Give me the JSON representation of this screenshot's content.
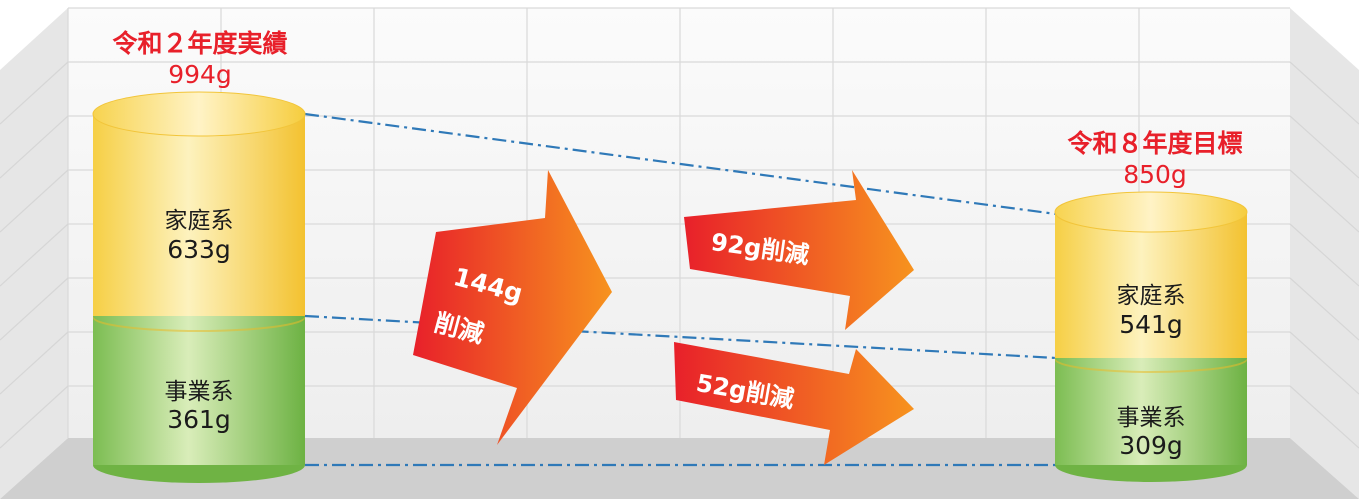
{
  "colors": {
    "household_light": "#fdf0b0",
    "household_dark": "#f3c72f",
    "business_light": "#d8ecb6",
    "business_dark": "#72b648",
    "accent_red": "#e8202a",
    "arrow_start": "#e8202a",
    "arrow_end": "#f7931e",
    "dashed_line": "#2f79b8"
  },
  "before": {
    "title": "令和２年度実績",
    "total": "994g",
    "household_label": "家庭系",
    "household_value": "633g",
    "business_label": "事業系",
    "business_value": "361g"
  },
  "after": {
    "title": "令和８年度目標",
    "total": "850g",
    "household_label": "家庭系",
    "household_value": "541g",
    "business_label": "事業系",
    "business_value": "309g"
  },
  "reductions": {
    "total_amount": "144g",
    "total_suffix": "削減",
    "household": "92g削減",
    "business": "52g削減"
  }
}
